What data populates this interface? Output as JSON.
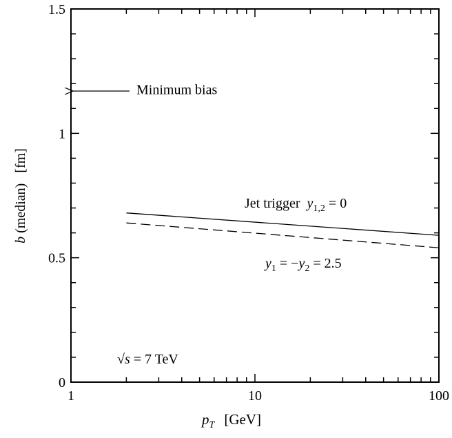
{
  "chart_data": {
    "type": "line",
    "xlabel_main": "p",
    "xlabel_sub": "T",
    "xlabel_unit": "[GeV]",
    "ylabel_var": "b",
    "ylabel_rest": " (median)   [fm]",
    "xscale": "log",
    "xlim": [
      1,
      100
    ],
    "ylim": [
      0,
      1.5
    ],
    "x_ticks": [
      {
        "value": 1,
        "label": "1"
      },
      {
        "value": 10,
        "label": "10"
      },
      {
        "value": 100,
        "label": "100"
      }
    ],
    "y_ticks": [
      {
        "value": 0,
        "label": "0"
      },
      {
        "value": 0.5,
        "label": "0.5"
      },
      {
        "value": 1,
        "label": "1"
      },
      {
        "value": 1.5,
        "label": "1.5"
      }
    ],
    "grid": false,
    "series": [
      {
        "name": "Jet trigger y1,2 = 0",
        "style": "solid",
        "x": [
          2,
          100
        ],
        "y": [
          0.68,
          0.59
        ]
      },
      {
        "name": "y1 = −y2 = 2.5",
        "style": "dashed",
        "x": [
          2,
          100
        ],
        "y": [
          0.64,
          0.54
        ]
      }
    ],
    "annotations": {
      "min_bias": {
        "text": "Minimum bias",
        "value": 1.17
      },
      "jet_label": {
        "prefix": "Jet trigger  ",
        "var": "y",
        "sub": "1,2",
        "suffix": " = 0"
      },
      "dashed_label": {
        "var1": "y",
        "sub1": "1",
        "mid": " = −",
        "var2": "y",
        "sub2": "2",
        "suffix": " = 2.5"
      },
      "energy": {
        "sqrt": "√",
        "var": "s",
        "suffix": " = 7 TeV"
      }
    }
  }
}
